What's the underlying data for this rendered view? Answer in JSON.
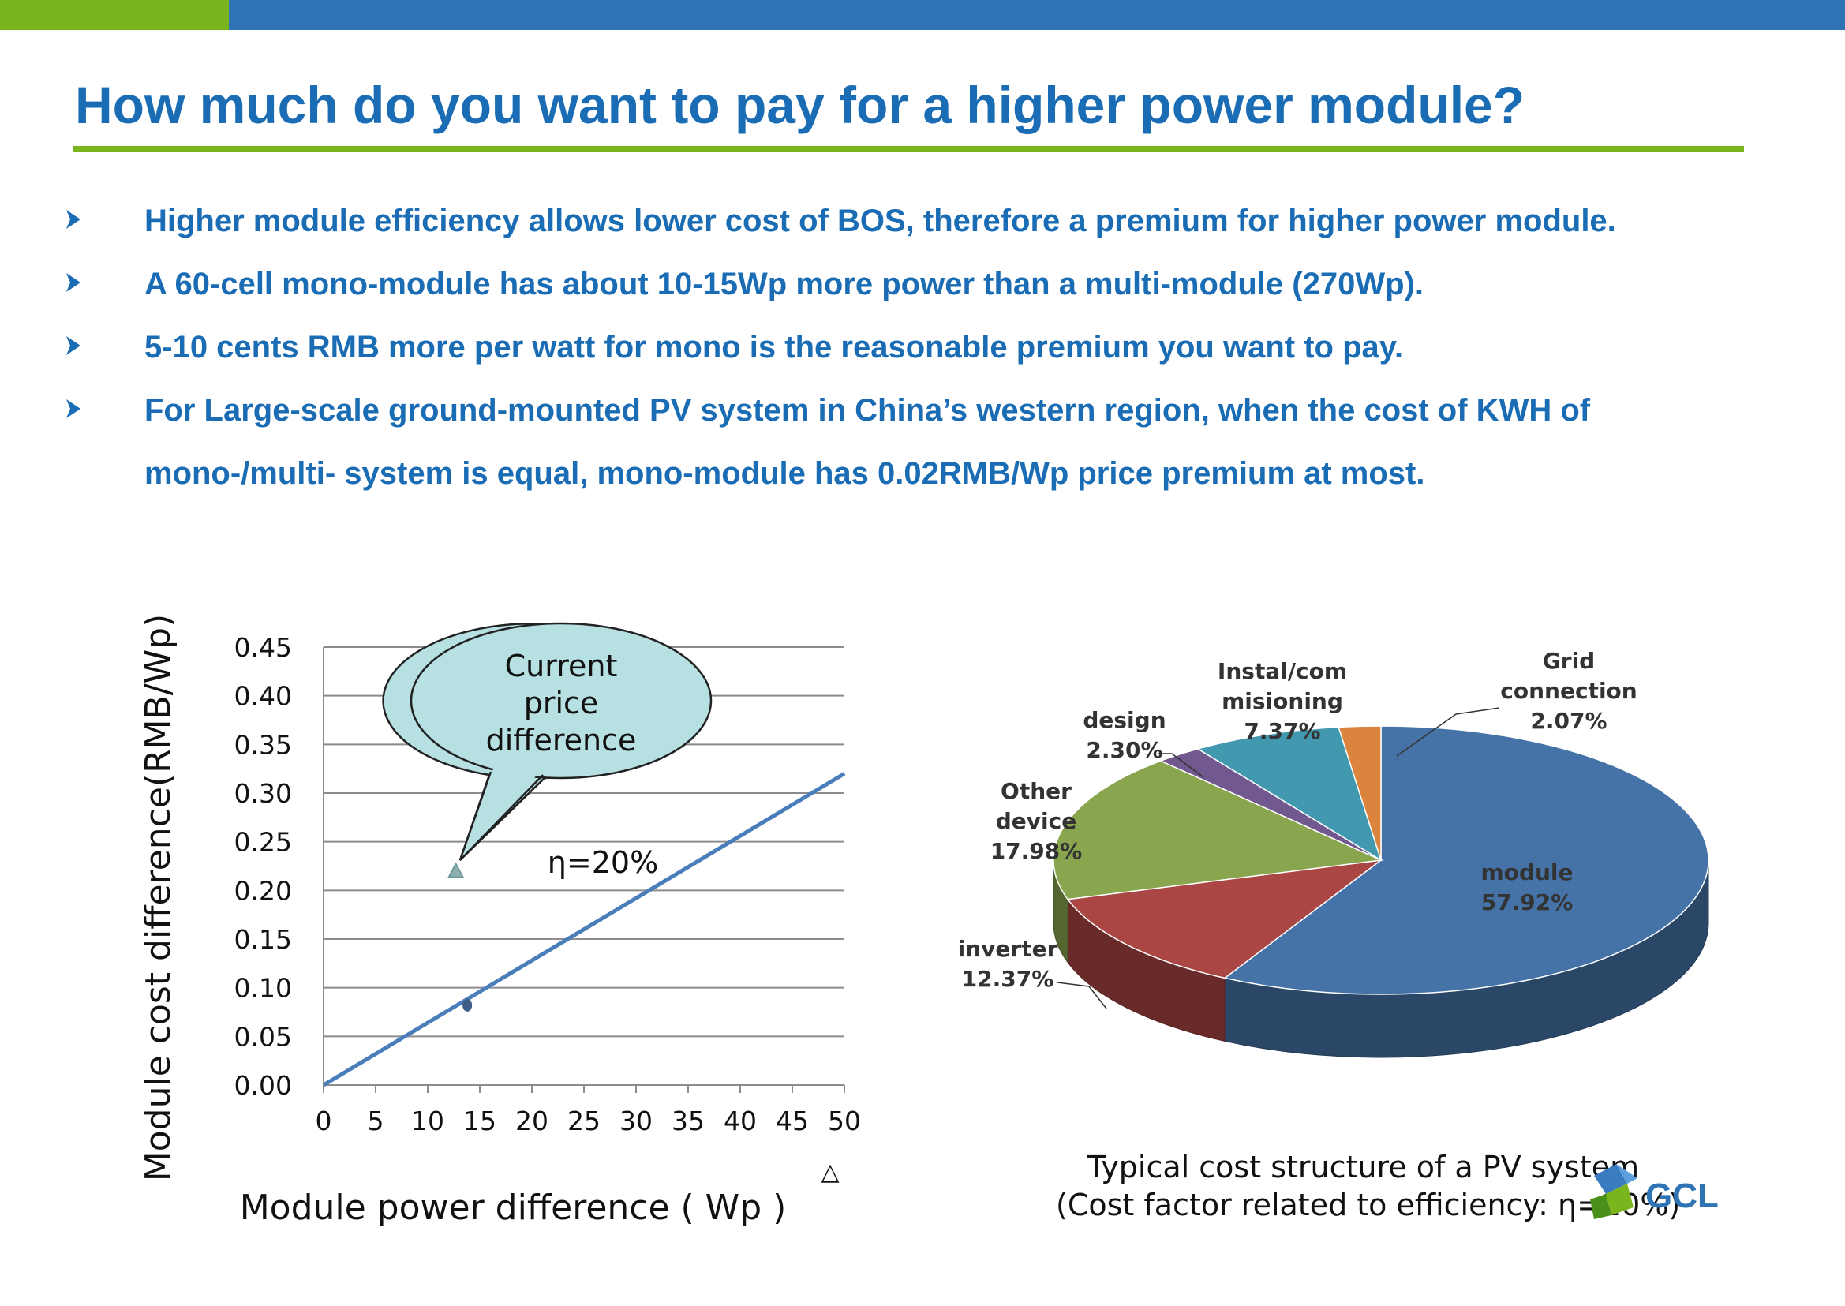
{
  "header": {
    "title": "How much do you want to pay for a higher power module?",
    "colors": {
      "accent_green": "#7ab51d",
      "accent_blue": "#2e74b5",
      "title_blue": "#1a6cb4"
    }
  },
  "bullets": [
    {
      "icon": "arrow-bullet-icon",
      "text": "Higher module efficiency allows lower cost of BOS, therefore a premium for higher power module."
    },
    {
      "icon": "arrow-bullet-icon",
      "text": "A 60-cell mono-module has about 10-15Wp more power than a multi-module (270Wp)."
    },
    {
      "icon": "arrow-bullet-icon",
      "text": "5-10 cents RMB more per watt for mono is the reasonable premium you want to pay."
    },
    {
      "icon": "arrow-bullet-icon",
      "text": "For Large-scale ground-mounted  PV system in China’s western region, when the cost of KWH of",
      "continuation": "mono-/multi- system is equal, mono-module has 0.02RMB/Wp price premium at most."
    }
  ],
  "chart_data": [
    {
      "type": "line",
      "xlabel": "Module power difference ( Wp )",
      "ylabel": "Module cost difference(RMB/Wp)",
      "xlim": [
        0,
        50
      ],
      "ylim": [
        0,
        0.45
      ],
      "x_ticks": [
        "0",
        "5",
        "10",
        "15",
        "20",
        "25",
        "30",
        "35",
        "40",
        "45",
        "50"
      ],
      "y_ticks": [
        "0.00",
        "0.05",
        "0.10",
        "0.15",
        "0.20",
        "0.25",
        "0.30",
        "0.35",
        "0.40",
        "0.45"
      ],
      "grid": true,
      "series": [
        {
          "name": "η=20%",
          "x": [
            0,
            50
          ],
          "y": [
            0,
            0.32
          ],
          "color": "#4a7ebb"
        }
      ],
      "points": [
        {
          "x": 12.7,
          "y": 0.22,
          "marker": "triangle",
          "color": "#8fb0b0"
        },
        {
          "x": 13.8,
          "y": 0.082,
          "marker": "circle",
          "color": "#3d5f86"
        }
      ],
      "callout": {
        "text_lines": [
          "Current",
          "price",
          "difference"
        ],
        "fill": "#b7e0e3"
      },
      "stray_marker": "△"
    },
    {
      "type": "pie",
      "style": "3d",
      "slices": [
        {
          "label": "module",
          "value": 57.92,
          "display": "57.92%",
          "color": "#4572a7"
        },
        {
          "label": "inverter",
          "value": 12.37,
          "display": "12.37%",
          "color": "#aa4643"
        },
        {
          "label": "Other device",
          "value": 17.98,
          "display": "17.98%",
          "color": "#89a54e"
        },
        {
          "label": "design",
          "value": 2.3,
          "display": "2.30%",
          "color": "#71588f"
        },
        {
          "label": "Instal/com misioning",
          "value": 7.37,
          "display": "7.37%",
          "color": "#4198af"
        },
        {
          "label": "Grid connection",
          "value": 2.07,
          "display": "2.07%",
          "color": "#db843d"
        }
      ],
      "caption_line1": "Typical cost structure of a PV system",
      "caption_line2": "(Cost factor related to efficiency: η=20%)"
    }
  ],
  "logo": {
    "text": "GCL",
    "icon": "gcl-logo-icon"
  }
}
